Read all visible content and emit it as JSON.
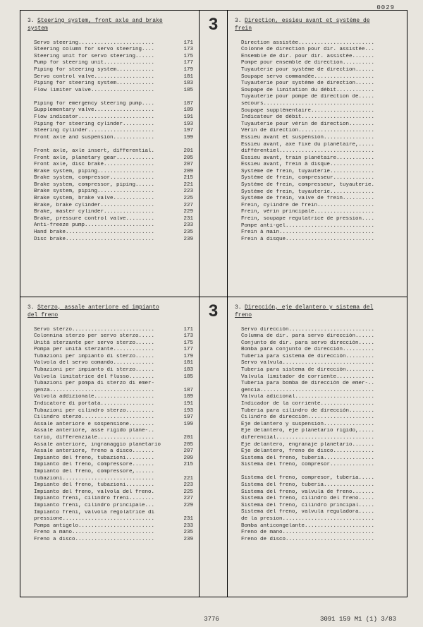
{
  "page_number_top": "0029",
  "footer_center": "3776",
  "footer_right": "3091 159 M1 (1) 3/83",
  "big_number": "3",
  "quadrants": [
    {
      "title_num": "3.",
      "title": "Steering system, front axle and brake system",
      "items": [
        {
          "t": "Servo steering",
          "p": "171"
        },
        {
          "t": "Steering column for servo steering",
          "p": "173"
        },
        {
          "t": "Steering unit for servo steering",
          "p": "175"
        },
        {
          "t": "Pump for steering unit",
          "p": "177"
        },
        {
          "t": "Piping for steering system",
          "p": "179"
        },
        {
          "t": "Servo control valve",
          "p": "181"
        },
        {
          "t": "Piping for steering system",
          "p": "183"
        },
        {
          "t": "Flow limiter valve",
          "p": "185"
        },
        {
          "blank": true
        },
        {
          "t": "Piping for emergency steering pump",
          "p": "187"
        },
        {
          "t": "Supplementary valve",
          "p": "189"
        },
        {
          "t": "Flow indicator",
          "p": "191"
        },
        {
          "t": "Piping for steering cylinder",
          "p": "193"
        },
        {
          "t": "Steering cylinder",
          "p": "197"
        },
        {
          "t": "Front axle and suspension",
          "p": "199"
        },
        {
          "blank": true
        },
        {
          "t": "Front axle, axle insert, differential",
          "p": "201"
        },
        {
          "t": "Front axle, planetary gear",
          "p": "205"
        },
        {
          "t": "Front axle, disc brake",
          "p": "207"
        },
        {
          "t": "Brake system, piping",
          "p": "209"
        },
        {
          "t": "Brake system, compressor",
          "p": "215"
        },
        {
          "t": "Brake system, compressor, piping",
          "p": "221"
        },
        {
          "t": "Brake system, piping",
          "p": "223"
        },
        {
          "t": "Brake system, brake valve",
          "p": "225"
        },
        {
          "t": "Brake, brake cylinder",
          "p": "227"
        },
        {
          "t": "Brake, master cylinder",
          "p": "229"
        },
        {
          "t": "Brake, pressure control valve",
          "p": "231"
        },
        {
          "t": "Anti-freeze pump",
          "p": "233"
        },
        {
          "t": "Hand brake",
          "p": "235"
        },
        {
          "t": "Disc brake",
          "p": "239"
        }
      ]
    },
    {
      "title_num": "3.",
      "title": "Direction, essieu avant et système de frein",
      "items": [
        {
          "t": "Direction assistée"
        },
        {
          "t": "Colonne de direction pour dir. assistée."
        },
        {
          "t": "Ensemble de dir. pour dir. assistée"
        },
        {
          "t": "Pompe pour ensemble de direction"
        },
        {
          "t": "Tuyauterie pour système de direction"
        },
        {
          "t": "Soupape servo commandée"
        },
        {
          "t": "Tuyauterie pour système de direction"
        },
        {
          "t": "Soupape de limitation du débit"
        },
        {
          "t": "Tuyauterie pour pompe de direction de"
        },
        {
          "t": "secours",
          "cont": true
        },
        {
          "t": "Soupape supplémentaire"
        },
        {
          "t": "Indicateur de débit"
        },
        {
          "t": "Tuyauterie pour vérin de direction"
        },
        {
          "t": "Vérin de direction"
        },
        {
          "t": "Essieu avant et suspension"
        },
        {
          "t": "Essieu avant, axe fixe du planétaire,"
        },
        {
          "t": "différentiel",
          "cont": true
        },
        {
          "t": "Essieu avant, train planétaire"
        },
        {
          "t": "Essieu avant, frein à disque"
        },
        {
          "t": "Système de frein, tuyauterie"
        },
        {
          "t": "Système de frein, compresseur"
        },
        {
          "t": "Système de frein, compresseur, tuyauterie."
        },
        {
          "t": "Système de frein, tuyauterie"
        },
        {
          "t": "Système de frein, valve de frein"
        },
        {
          "t": "Frein, cylindre de frein"
        },
        {
          "t": "Frein, vérin principale"
        },
        {
          "t": "Frein, soupape regulatrice de pression"
        },
        {
          "t": "Pompe anti-gel"
        },
        {
          "t": "Frein à main"
        },
        {
          "t": "Frein à disque"
        }
      ]
    },
    {
      "title_num": "3.",
      "title": "Sterzo, assale anteriore ed impianto del freno",
      "items": [
        {
          "t": "Servo sterzo",
          "p": "171"
        },
        {
          "t": "Colonnina sterzo per servo sterzo",
          "p": "173"
        },
        {
          "t": "Unità sterzante per servo sterzo",
          "p": "175"
        },
        {
          "t": "Pompa per unità sterzante",
          "p": "177"
        },
        {
          "t": "Tubazioni per impianto di sterzo",
          "p": "179"
        },
        {
          "t": "Valvola del servo comando",
          "p": "181"
        },
        {
          "t": "Tubazioni per impianto di sterzo",
          "p": "183"
        },
        {
          "t": "Valvola limitatrice del flusso",
          "p": "185"
        },
        {
          "t": "Tubazioni per pompa di sterzo di emer-",
          "p": ""
        },
        {
          "t": "genza",
          "p": "187",
          "cont": true
        },
        {
          "t": "Valvola addizionale",
          "p": "189"
        },
        {
          "t": "Indicatore di portata",
          "p": "191"
        },
        {
          "t": "Tubazioni per cilindro sterzo",
          "p": "193"
        },
        {
          "t": "Cilindro sterzo",
          "p": "197"
        },
        {
          "t": "Assale anteriore e sospensione",
          "p": "199"
        },
        {
          "t": "Assale anteriore, asse rigido plane-",
          "p": ""
        },
        {
          "t": "tario, differenziale",
          "p": "201",
          "cont": true
        },
        {
          "t": "Assale anteriore, ingranaggio planetario",
          "p": "205"
        },
        {
          "t": "Assale anteriore, freno a disco",
          "p": "207"
        },
        {
          "t": "Impianto del freno, tubazioni",
          "p": "209"
        },
        {
          "t": "Impianto del freno, compressore",
          "p": "215"
        },
        {
          "t": "Impianto del freno, compressore,",
          "p": ""
        },
        {
          "t": "tubazioni",
          "p": "221",
          "cont": true
        },
        {
          "t": "Impianto del freno, tubazioni",
          "p": "223"
        },
        {
          "t": "Impianto del freno, valvola del freno",
          "p": "225"
        },
        {
          "t": "Impianto freni, cilindro freni",
          "p": "227"
        },
        {
          "t": "Impianto freni, cilindro principale",
          "p": "229"
        },
        {
          "t": "Impianto freni, valvola regolatrice di",
          "p": ""
        },
        {
          "t": "pressione",
          "p": "231",
          "cont": true
        },
        {
          "t": "Pompa antigelo",
          "p": "233"
        },
        {
          "t": "Freno a mano",
          "p": "235"
        },
        {
          "t": "Freno a disco",
          "p": "239"
        }
      ]
    },
    {
      "title_num": "3.",
      "title": "Dirección, eje delantero y sistema del freno",
      "items": [
        {
          "t": "Servo dirección"
        },
        {
          "t": "Columna de dir. para servo dirección"
        },
        {
          "t": "Conjunto de dir. para servo dirección"
        },
        {
          "t": "Bomba para conjunto de dirección"
        },
        {
          "t": "Tuberia para sistema de dirección"
        },
        {
          "t": "Servo valvula"
        },
        {
          "t": "Tuberia para sistema de dirección"
        },
        {
          "t": "Valvula limitador de corriente"
        },
        {
          "t": "Tuberia para bomba de dirección de emer-"
        },
        {
          "t": "gencia",
          "cont": true
        },
        {
          "t": "Valvula adicional"
        },
        {
          "t": "Indicador de la corriente"
        },
        {
          "t": "Tuberia para cilindro de dirección"
        },
        {
          "t": "Cilindro de dirección"
        },
        {
          "t": "Eje delantero y suspension"
        },
        {
          "t": "Eje delantero, eje planetario rigido,"
        },
        {
          "t": "diferencial",
          "cont": true
        },
        {
          "t": "Eje delantero, engranaje planetario"
        },
        {
          "t": "Eje delantero, freno de disco"
        },
        {
          "t": "Sistema del freno, tuberia"
        },
        {
          "t": "Sistema del freno, compresor"
        },
        {
          "blank": true
        },
        {
          "t": "Sistema del freno, compresor, tuberia"
        },
        {
          "t": "Sistema del freno, tuberia"
        },
        {
          "t": "Sistema del freno, valvula de freno"
        },
        {
          "t": "Sistema del freno, cilindro del freno"
        },
        {
          "t": "Sistema del freno, cilindro principal"
        },
        {
          "t": "Sistema del freno, valvula reguladora"
        },
        {
          "t": "de la presion",
          "cont": true
        },
        {
          "t": "Bomba anticongelante"
        },
        {
          "t": "Freno de mano"
        },
        {
          "t": "Freno de disco"
        }
      ]
    }
  ]
}
